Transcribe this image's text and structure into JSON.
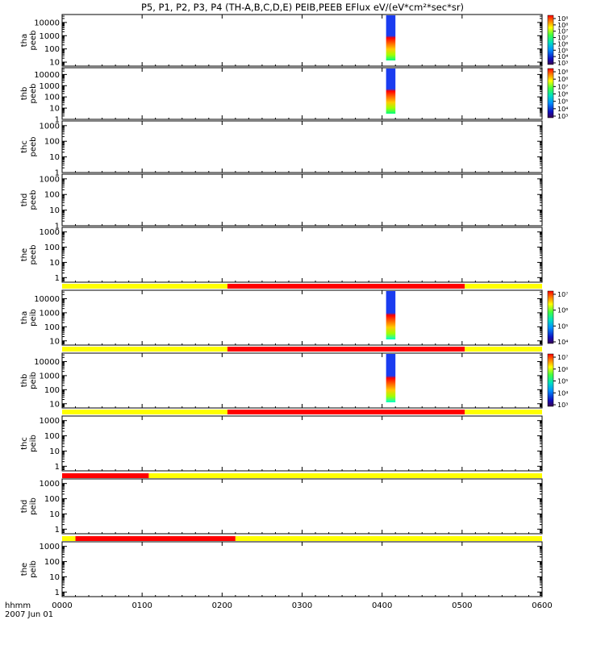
{
  "chart_data": {
    "type": "heatmap",
    "title": "P5, P1, P2, P3, P4 (TH-A,B,C,D,E) PEIB,PEEB EFlux eV/(eV*cm²*sec*sr)",
    "x_axis": {
      "tick_labels": [
        "0000",
        "0100",
        "0200",
        "0300",
        "0400",
        "0500",
        "0600"
      ],
      "values_min": [
        0,
        60,
        120,
        180,
        240,
        300,
        360
      ],
      "range_min": [
        0,
        360
      ],
      "label_line1": "hhmm",
      "label_line2": "2007 Jun 01"
    },
    "colorscale": "rainbow (purple→blue→cyan→green→yellow→red)",
    "panels": [
      {
        "id": "tha-peeb",
        "ylabel_top": "tha",
        "ylabel_bottom": "peeb",
        "yticks": [
          "10000",
          "1000",
          "100",
          "10"
        ],
        "yrange": [
          5,
          40000
        ],
        "scale": "log",
        "spectrogram": {
          "t_start_min": 243,
          "t_end_min": 250,
          "upper_color": "#1a3cf0",
          "lower_color_stops": [
            "#ff0000",
            "#ff6a00",
            "#ffcc00",
            "#a0ff00",
            "#00ff80"
          ]
        },
        "colorbar": {
          "labels": [
            "10⁸",
            "10⁸",
            "10⁷",
            "10⁷",
            "10⁶",
            "10⁵",
            "10⁴",
            "10³"
          ],
          "range": [
            1000,
            100000000
          ]
        }
      },
      {
        "id": "thb-peeb",
        "ylabel_top": "thb",
        "ylabel_bottom": "peeb",
        "yticks": [
          "10000",
          "1000",
          "100",
          "10",
          "1"
        ],
        "yrange": [
          1,
          40000
        ],
        "scale": "log",
        "spectrogram": {
          "t_start_min": 243,
          "t_end_min": 250,
          "upper_color": "#1a3cf0",
          "lower_color_stops": [
            "#ff0000",
            "#ff6a00",
            "#ffcc00",
            "#a0ff00",
            "#00ff80"
          ]
        },
        "colorbar": {
          "labels": [
            "10⁸",
            "10⁸",
            "10⁷",
            "10⁶",
            "10⁵",
            "10⁴",
            "10³"
          ],
          "range": [
            1000,
            100000000
          ]
        }
      },
      {
        "id": "thc-peeb",
        "ylabel_top": "thc",
        "ylabel_bottom": "peeb",
        "yticks": [
          "1000",
          "100",
          "10",
          "1"
        ],
        "yrange": [
          1,
          2000
        ],
        "scale": "log"
      },
      {
        "id": "thd-peeb",
        "ylabel_top": "thd",
        "ylabel_bottom": "peeb",
        "yticks": [
          "1000",
          "100",
          "10",
          "1"
        ],
        "yrange": [
          1,
          2000
        ],
        "scale": "log"
      },
      {
        "id": "the-peeb",
        "ylabel_top": "the",
        "ylabel_bottom": "peeb",
        "yticks": [
          "1000",
          "100",
          "10",
          "1"
        ],
        "yrange": [
          0.5,
          2000
        ],
        "scale": "log"
      },
      {
        "id": "tha-peib",
        "ylabel_top": "tha",
        "ylabel_bottom": "peib",
        "yticks": [
          "10000",
          "1000",
          "100",
          "10"
        ],
        "yrange": [
          5,
          40000
        ],
        "scale": "log",
        "spectrogram": {
          "t_start_min": 243,
          "t_end_min": 250,
          "upper_color": "#1a3cf0",
          "lower_color_stops": [
            "#ff0000",
            "#ff6a00",
            "#ffcc00",
            "#a0ff00",
            "#00ffcc"
          ]
        },
        "colorbar": {
          "labels": [
            "10⁷",
            "10⁶",
            "10⁵",
            "10⁴"
          ],
          "range": [
            10000,
            30000000
          ]
        }
      },
      {
        "id": "thb-peib",
        "ylabel_top": "thb",
        "ylabel_bottom": "peib",
        "yticks": [
          "10000",
          "1000",
          "100",
          "10"
        ],
        "yrange": [
          5,
          40000
        ],
        "scale": "log",
        "spectrogram": {
          "t_start_min": 243,
          "t_end_min": 250,
          "upper_color": "#1a3cf0",
          "lower_color_stops": [
            "#ff0000",
            "#ff6a00",
            "#ffcc00",
            "#a0ff00",
            "#00ffcc"
          ]
        },
        "colorbar": {
          "labels": [
            "10⁷",
            "10⁶",
            "10⁵",
            "10⁴",
            "10³"
          ],
          "range": [
            1000,
            30000000
          ]
        }
      },
      {
        "id": "thc-peib",
        "ylabel_top": "thc",
        "ylabel_bottom": "peib",
        "yticks": [
          "1000",
          "100",
          "10",
          "1"
        ],
        "yrange": [
          0.5,
          2000
        ],
        "scale": "log"
      },
      {
        "id": "thd-peib",
        "ylabel_top": "thd",
        "ylabel_bottom": "peib",
        "yticks": [
          "1000",
          "100",
          "10",
          "1"
        ],
        "yrange": [
          0.5,
          2000
        ],
        "scale": "log"
      },
      {
        "id": "the-peib",
        "ylabel_top": "the",
        "ylabel_bottom": "peib",
        "yticks": [
          "1000",
          "100",
          "10",
          "1"
        ],
        "yrange": [
          0.5,
          2000
        ],
        "scale": "log"
      }
    ],
    "mode_bars": [
      {
        "after_panel": "the-peeb",
        "segments": [
          {
            "start_min": 0,
            "end_min": 124,
            "color": "#ffff00"
          },
          {
            "start_min": 124,
            "end_min": 302,
            "color": "#ff0000"
          },
          {
            "start_min": 302,
            "end_min": 360,
            "color": "#ffff00"
          }
        ]
      },
      {
        "after_panel": "tha-peib",
        "segments": [
          {
            "start_min": 0,
            "end_min": 124,
            "color": "#ffff00"
          },
          {
            "start_min": 124,
            "end_min": 302,
            "color": "#ff0000"
          },
          {
            "start_min": 302,
            "end_min": 360,
            "color": "#ffff00"
          }
        ]
      },
      {
        "after_panel": "thb-peib",
        "segments": [
          {
            "start_min": 0,
            "end_min": 124,
            "color": "#ffff00"
          },
          {
            "start_min": 124,
            "end_min": 302,
            "color": "#ff0000"
          },
          {
            "start_min": 302,
            "end_min": 360,
            "color": "#ffff00"
          }
        ]
      },
      {
        "after_panel": "thc-peib",
        "segments": [
          {
            "start_min": 0,
            "end_min": 65,
            "color": "#ff0000"
          },
          {
            "start_min": 65,
            "end_min": 360,
            "color": "#ffff00"
          }
        ]
      },
      {
        "after_panel": "thd-peib",
        "segments": [
          {
            "start_min": 0,
            "end_min": 10,
            "color": "#ffff00"
          },
          {
            "start_min": 10,
            "end_min": 130,
            "color": "#ff0000"
          },
          {
            "start_min": 130,
            "end_min": 360,
            "color": "#ffff00"
          }
        ]
      }
    ],
    "grid": false
  }
}
